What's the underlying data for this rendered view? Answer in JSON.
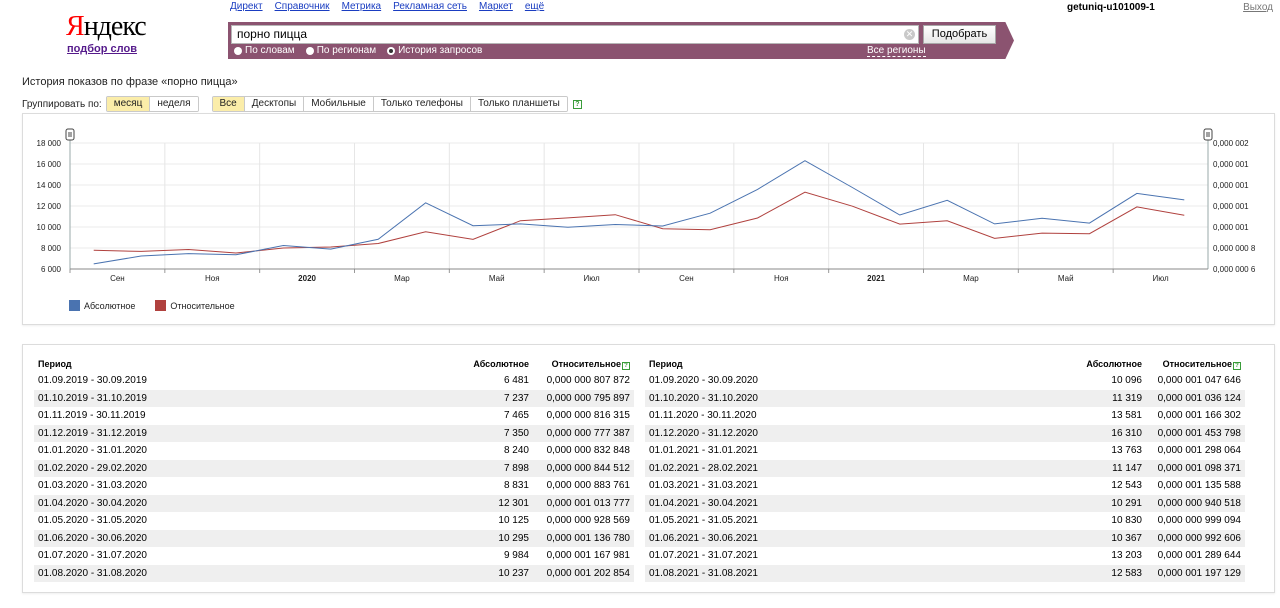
{
  "logo": {
    "word": "Яндекс",
    "first_letter": "Я",
    "rest": "ндекс",
    "subtitle": "подбор слов"
  },
  "topnav": [
    "Директ",
    "Справочник",
    "Метрика",
    "Рекламная сеть",
    "Маркет",
    "ещё"
  ],
  "user": "getuniq-u101009-1",
  "logout": "Выход",
  "search": {
    "value": "порно пицца",
    "button": "Подобрать",
    "modes": [
      {
        "label": "По словам",
        "checked": false
      },
      {
        "label": "По регионам",
        "checked": false
      },
      {
        "label": "История запросов",
        "checked": true
      }
    ],
    "regions_link": "Все регионы"
  },
  "page_title": "История показов по фразе «порно пицца»",
  "grouping": {
    "label": "Группировать по:",
    "options": [
      "месяц",
      "неделя"
    ],
    "active": "месяц"
  },
  "devices": {
    "options": [
      "Все",
      "Десктопы",
      "Мобильные",
      "Только телефоны",
      "Только планшеты"
    ],
    "active": "Все"
  },
  "colors": {
    "absolute": "#4a73b0",
    "relative": "#b0413e",
    "brand_bar": "#8b5370"
  },
  "chart_data": {
    "type": "line",
    "x_labels": [
      "Сен",
      "Ноя",
      "2020",
      "Мар",
      "Май",
      "Июл",
      "Сен",
      "Ноя",
      "2021",
      "Мар",
      "Май",
      "Июл"
    ],
    "x_label_bold": [
      "2020",
      "2021"
    ],
    "left_axis": {
      "ylim": [
        6000,
        18000
      ],
      "ticks": [
        "6 000",
        "8 000",
        "10 000",
        "12 000",
        "14 000",
        "16 000",
        "18 000"
      ]
    },
    "right_axis": {
      "ylim": [
        6e-07,
        2e-06
      ],
      "ticks": [
        "0,000 000 6",
        "0,000 000 8",
        "0,000 001",
        "0,000 001",
        "0,000 001",
        "0,000 001",
        "0,000 002"
      ]
    },
    "series": [
      {
        "name": "Абсолютное",
        "axis": "left",
        "values": [
          6481,
          7237,
          7465,
          7350,
          8240,
          7898,
          8831,
          12301,
          10125,
          10295,
          9984,
          10237,
          10096,
          11319,
          13581,
          16310,
          13763,
          11147,
          12543,
          10291,
          10830,
          10367,
          13203,
          12583
        ]
      },
      {
        "name": "Относительное",
        "axis": "right",
        "values": [
          8.07872e-07,
          7.95897e-07,
          8.16315e-07,
          7.77387e-07,
          8.32848e-07,
          8.44512e-07,
          8.83761e-07,
          1.013777e-06,
          9.28569e-07,
          1.13678e-06,
          1.167981e-06,
          1.202854e-06,
          1.047646e-06,
          1.036124e-06,
          1.166302e-06,
          1.453798e-06,
          1.298064e-06,
          1.098371e-06,
          1.135588e-06,
          9.40518e-07,
          9.99094e-07,
          9.92606e-07,
          1.289644e-06,
          1.197129e-06
        ]
      }
    ],
    "grid": true,
    "legend": "bottom-left"
  },
  "table": {
    "headers": {
      "period": "Период",
      "absolute": "Абсолютное",
      "relative": "Относительное"
    },
    "left": [
      [
        "01.09.2019 - 30.09.2019",
        "6 481",
        "0,000 000 807 872"
      ],
      [
        "01.10.2019 - 31.10.2019",
        "7 237",
        "0,000 000 795 897"
      ],
      [
        "01.11.2019 - 30.11.2019",
        "7 465",
        "0,000 000 816 315"
      ],
      [
        "01.12.2019 - 31.12.2019",
        "7 350",
        "0,000 000 777 387"
      ],
      [
        "01.01.2020 - 31.01.2020",
        "8 240",
        "0,000 000 832 848"
      ],
      [
        "01.02.2020 - 29.02.2020",
        "7 898",
        "0,000 000 844 512"
      ],
      [
        "01.03.2020 - 31.03.2020",
        "8 831",
        "0,000 000 883 761"
      ],
      [
        "01.04.2020 - 30.04.2020",
        "12 301",
        "0,000 001 013 777"
      ],
      [
        "01.05.2020 - 31.05.2020",
        "10 125",
        "0,000 000 928 569"
      ],
      [
        "01.06.2020 - 30.06.2020",
        "10 295",
        "0,000 001 136 780"
      ],
      [
        "01.07.2020 - 31.07.2020",
        "9 984",
        "0,000 001 167 981"
      ],
      [
        "01.08.2020 - 31.08.2020",
        "10 237",
        "0,000 001 202 854"
      ]
    ],
    "right": [
      [
        "01.09.2020 - 30.09.2020",
        "10 096",
        "0,000 001 047 646"
      ],
      [
        "01.10.2020 - 31.10.2020",
        "11 319",
        "0,000 001 036 124"
      ],
      [
        "01.11.2020 - 30.11.2020",
        "13 581",
        "0,000 001 166 302"
      ],
      [
        "01.12.2020 - 31.12.2020",
        "16 310",
        "0,000 001 453 798"
      ],
      [
        "01.01.2021 - 31.01.2021",
        "13 763",
        "0,000 001 298 064"
      ],
      [
        "01.02.2021 - 28.02.2021",
        "11 147",
        "0,000 001 098 371"
      ],
      [
        "01.03.2021 - 31.03.2021",
        "12 543",
        "0,000 001 135 588"
      ],
      [
        "01.04.2021 - 30.04.2021",
        "10 291",
        "0,000 000 940 518"
      ],
      [
        "01.05.2021 - 31.05.2021",
        "10 830",
        "0,000 000 999 094"
      ],
      [
        "01.06.2021 - 30.06.2021",
        "10 367",
        "0,000 000 992 606"
      ],
      [
        "01.07.2021 - 31.07.2021",
        "13 203",
        "0,000 001 289 644"
      ],
      [
        "01.08.2021 - 31.08.2021",
        "12 583",
        "0,000 001 197 129"
      ]
    ]
  }
}
